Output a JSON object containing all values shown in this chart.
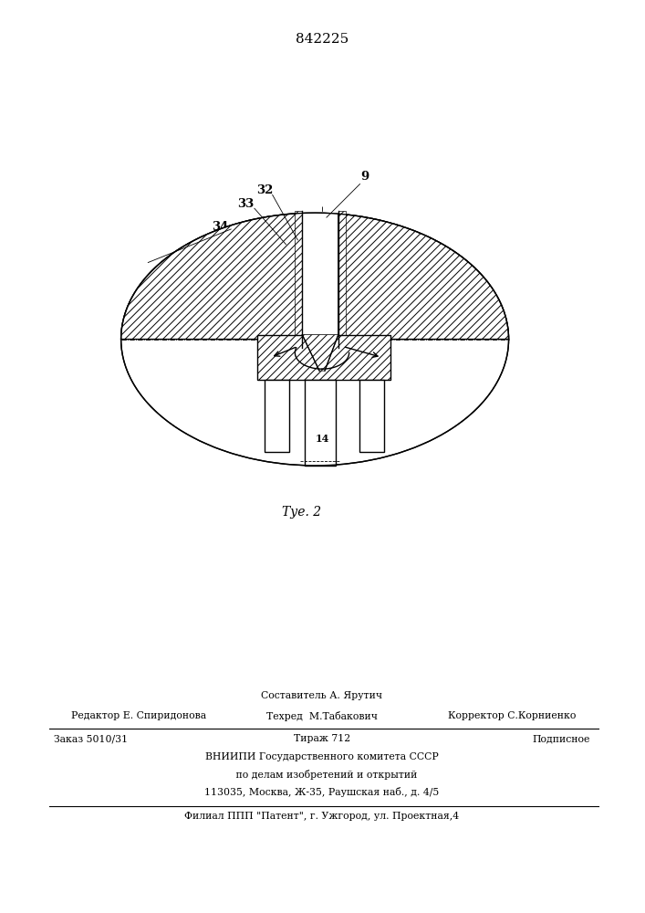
{
  "patent_number": "842225",
  "fig_label": "Τуе. 2",
  "background_color": "#ffffff",
  "line_color": "#000000",
  "footer": {
    "sestavitel": "Составитель А. Ярутич",
    "redaktor": "Редактор Е. Спиридонова",
    "tehred": "Техред  М.Табакович",
    "korrektor": "Корректор С.Корниенко",
    "zakaz": "Заказ 5010/31",
    "tirazh": "Тираж 712",
    "podpisnoe": "Подписное",
    "vniipи1": "ВНИИПИ Государственного комитета СССР",
    "vniipи2": "по делам изобретений и открытий",
    "address": "113035, Москва, Ж-35, Раушская наб., д. 4/5",
    "filial": "Филиал ППП \"Патент\", г. Ужгород, ул. Проектная,4"
  }
}
